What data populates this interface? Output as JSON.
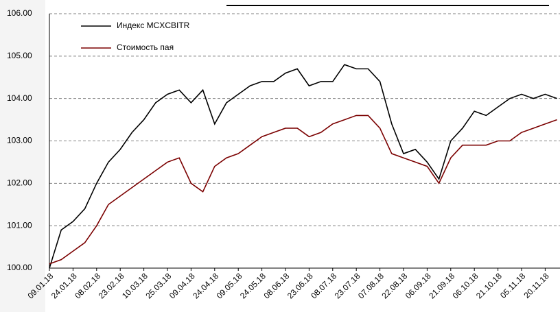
{
  "chart_data": {
    "type": "line",
    "categories": [
      "09.01.18",
      null,
      "24.01.18",
      null,
      "08.02.18",
      null,
      "23.02.18",
      null,
      "10.03.18",
      null,
      "25.03.18",
      null,
      "09.04.18",
      null,
      "24.04.18",
      null,
      "09.05.18",
      null,
      "24.05.18",
      null,
      "08.06.18",
      null,
      "23.06.18",
      null,
      "08.07.18",
      null,
      "23.07.18",
      null,
      "07.08.18",
      null,
      "22.08.18",
      null,
      "06.09.18",
      null,
      "21.09.18",
      null,
      "06.10.18",
      null,
      "21.10.18",
      null,
      "05.11.18",
      null,
      "20.11.18",
      null
    ],
    "series": [
      {
        "name": "Индекс MCXCBITR",
        "color": "#000000",
        "values": [
          100.0,
          100.9,
          101.1,
          101.4,
          102.0,
          102.5,
          102.8,
          103.2,
          103.5,
          103.9,
          104.1,
          104.2,
          103.9,
          104.2,
          103.4,
          103.9,
          104.1,
          104.3,
          104.4,
          104.4,
          104.6,
          104.7,
          104.3,
          104.4,
          104.4,
          104.8,
          104.7,
          104.7,
          104.4,
          103.4,
          102.7,
          102.8,
          102.5,
          102.1,
          103.0,
          103.3,
          103.7,
          103.6,
          103.8,
          104.0,
          104.1,
          104.0,
          104.1,
          104.0
        ]
      },
      {
        "name": "Стоимость пая",
        "color": "#7b0000",
        "values": [
          100.1,
          100.2,
          100.4,
          100.6,
          101.0,
          101.5,
          101.7,
          101.9,
          102.1,
          102.3,
          102.5,
          102.6,
          102.0,
          101.8,
          102.4,
          102.6,
          102.7,
          102.9,
          103.1,
          103.2,
          103.3,
          103.3,
          103.1,
          103.2,
          103.4,
          103.5,
          103.6,
          103.6,
          103.3,
          102.7,
          102.6,
          102.5,
          102.4,
          102.0,
          102.6,
          102.9,
          102.9,
          102.9,
          103.0,
          103.0,
          103.2,
          103.3,
          103.4,
          103.5
        ]
      }
    ],
    "ylim": [
      100,
      106
    ],
    "yticks": [
      {
        "value": 100,
        "label": "100.00"
      },
      {
        "value": 101,
        "label": "101.00"
      },
      {
        "value": 102,
        "label": "102.00"
      },
      {
        "value": 103,
        "label": "103.00"
      },
      {
        "value": 104,
        "label": "104.00"
      },
      {
        "value": 105,
        "label": "105.00"
      },
      {
        "value": 106,
        "label": "106.00"
      }
    ],
    "grid": true
  }
}
